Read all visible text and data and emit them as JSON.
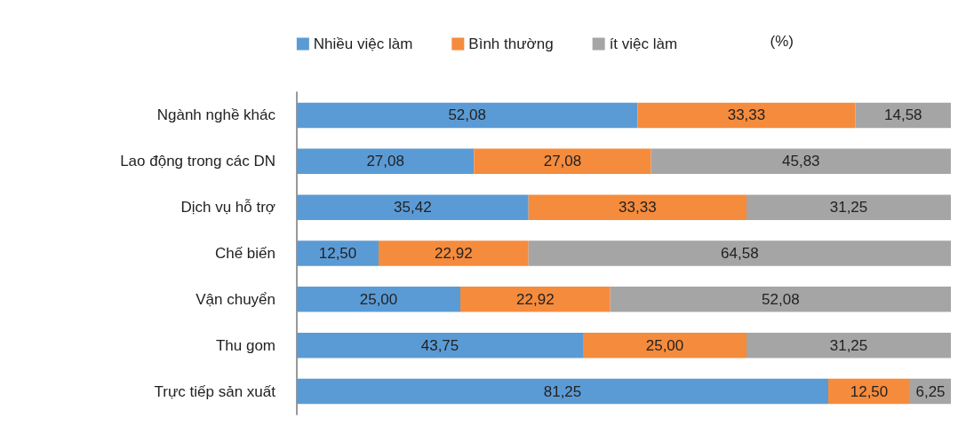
{
  "chart_data": {
    "type": "bar",
    "orientation": "horizontal",
    "stacked": true,
    "categories": [
      "Ngành nghề khác",
      "Lao động trong các DN",
      "Dịch vụ hỗ trợ",
      "Chế biến",
      "Vận chuyển",
      "Thu gom",
      "Trực tiếp sản xuất"
    ],
    "series": [
      {
        "name": "Nhiều việc làm",
        "color": "#5b9bd5",
        "values": [
          52.08,
          27.08,
          35.42,
          12.5,
          25.0,
          43.75,
          81.25
        ],
        "value_labels": [
          "52,08",
          "27,08",
          "35,42",
          "12,50",
          "25,00",
          "43,75",
          "81,25"
        ]
      },
      {
        "name": "Bình thường",
        "color": "#f58b3c",
        "values": [
          33.33,
          27.08,
          33.33,
          22.92,
          22.92,
          25.0,
          12.5
        ],
        "value_labels": [
          "33,33",
          "27,08",
          "33,33",
          "22,92",
          "22,92",
          "25,00",
          "12,50"
        ]
      },
      {
        "name": "ít việc làm",
        "color": "#a5a5a5",
        "values": [
          14.58,
          45.83,
          31.25,
          64.58,
          52.08,
          31.25,
          6.25
        ],
        "value_labels": [
          "14,58",
          "45,83",
          "31,25",
          "64,58",
          "52,08",
          "31,25",
          "6,25"
        ]
      }
    ],
    "xlim": [
      0,
      100
    ],
    "legend": "top",
    "annotations": [
      "(%)"
    ]
  }
}
